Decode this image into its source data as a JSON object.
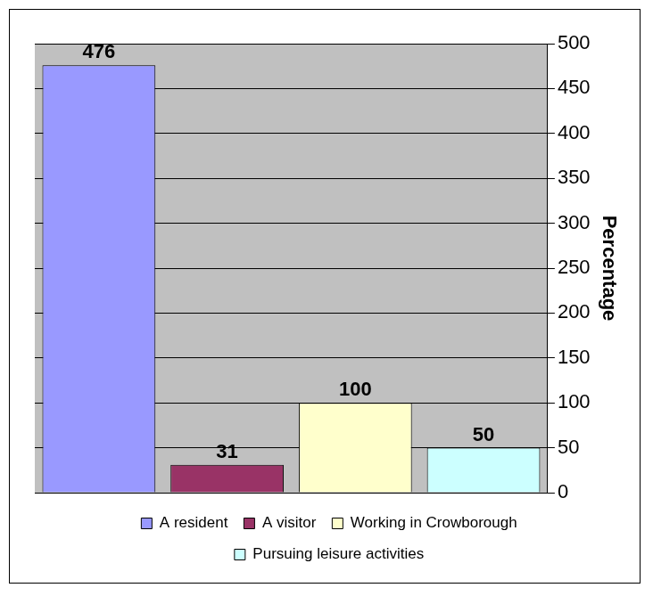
{
  "chart_data": {
    "type": "bar",
    "categories": [
      "A resident",
      "A visitor",
      "Working in Crowborough",
      "Pursuing leisure activities"
    ],
    "values": [
      476,
      31,
      100,
      50
    ],
    "colors": [
      "#9999ff",
      "#993366",
      "#ffffcc",
      "#ccffff"
    ],
    "y_label": "Percentage",
    "ylim": [
      0,
      500
    ],
    "yticks": [
      0,
      50,
      100,
      150,
      200,
      250,
      300,
      350,
      400,
      450,
      500
    ],
    "grid": true,
    "data_labels": true,
    "legend": "bottom",
    "tick_labels": "y"
  }
}
